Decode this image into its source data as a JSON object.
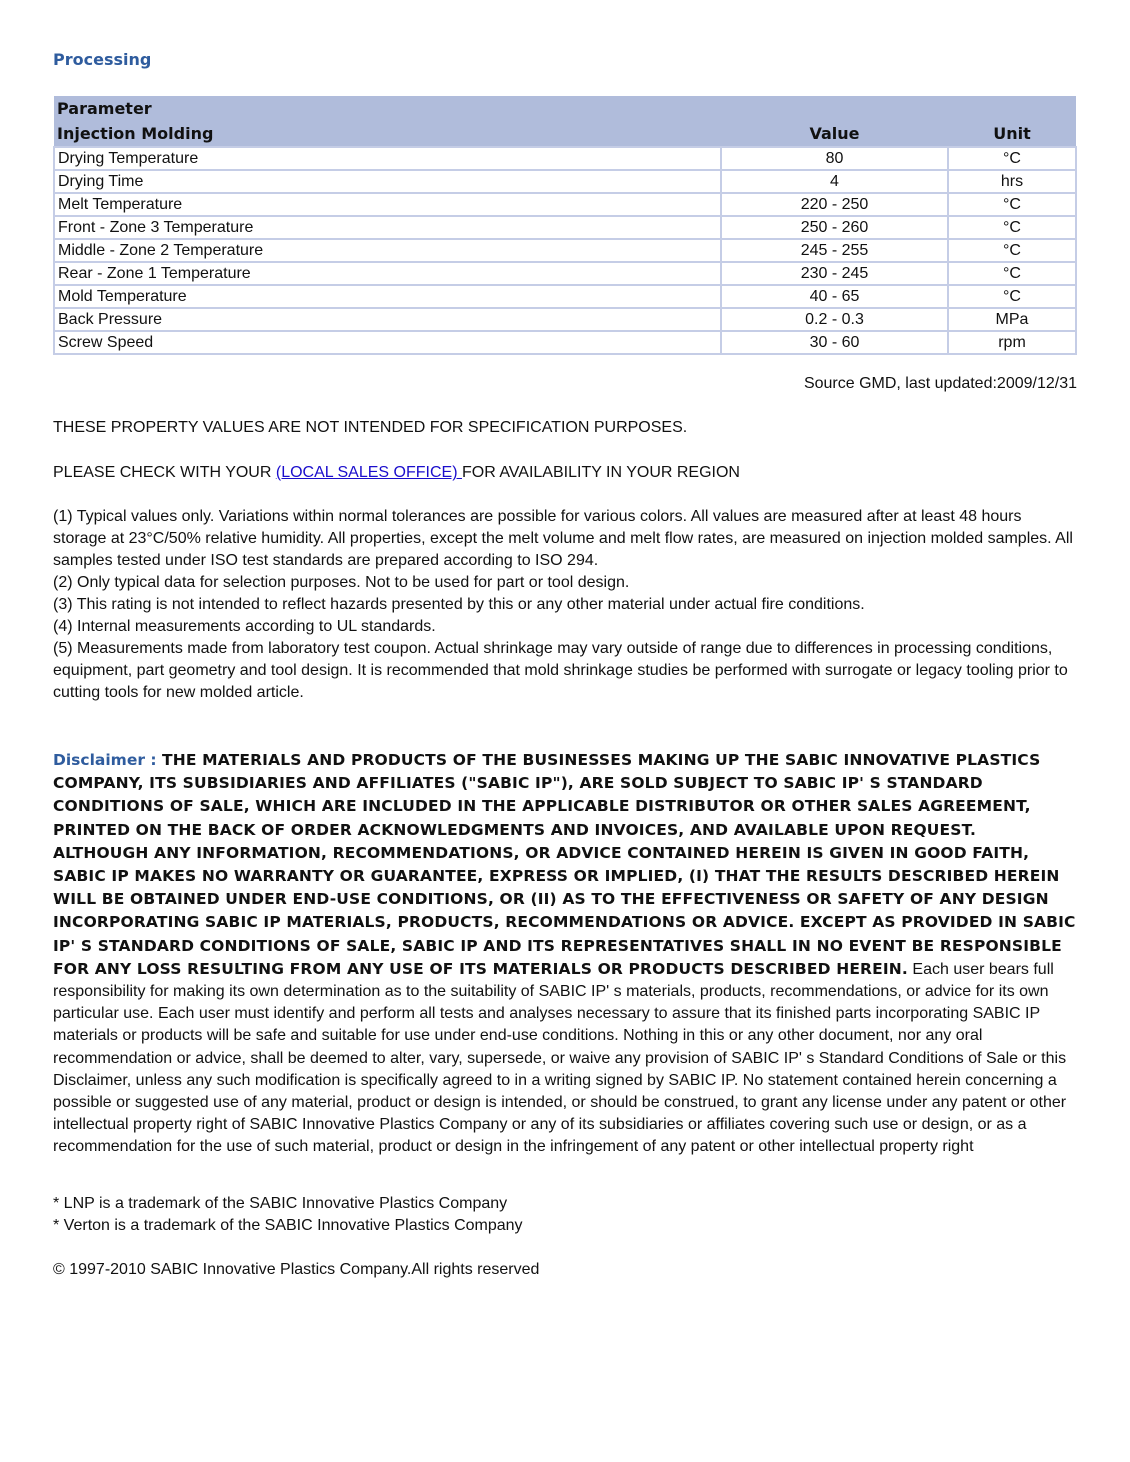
{
  "section_title": "Processing",
  "table": {
    "header_param": "Parameter",
    "header_group": "Injection Molding",
    "header_value": "Value",
    "header_unit": "Unit",
    "rows": [
      {
        "param": "Drying Temperature",
        "value": "80",
        "unit": "°C"
      },
      {
        "param": "Drying Time",
        "value": "4",
        "unit": "hrs"
      },
      {
        "param": "Melt Temperature",
        "value": "220 - 250",
        "unit": "°C"
      },
      {
        "param": "Front - Zone 3 Temperature",
        "value": "250 - 260",
        "unit": "°C"
      },
      {
        "param": "Middle - Zone 2 Temperature",
        "value": "245 - 255",
        "unit": "°C"
      },
      {
        "param": "Rear - Zone 1 Temperature",
        "value": "230 - 245",
        "unit": "°C"
      },
      {
        "param": "Mold Temperature",
        "value": "40 - 65",
        "unit": "°C"
      },
      {
        "param": "Back Pressure",
        "value": "0.2 - 0.3",
        "unit": "MPa"
      },
      {
        "param": "Screw Speed",
        "value": "30 - 60",
        "unit": "rpm"
      }
    ]
  },
  "source": "Source GMD, last updated:2009/12/31",
  "spec_notice": "THESE PROPERTY VALUES ARE NOT INTENDED FOR SPECIFICATION PURPOSES.",
  "check": {
    "before": "PLEASE CHECK WITH YOUR ",
    "link": "(LOCAL SALES OFFICE) ",
    "after": "FOR AVAILABILITY IN YOUR REGION"
  },
  "notes": [
    "(1) Typical values only. Variations within normal tolerances are possible for various colors. All values are measured after at least 48 hours storage at 23°C/50% relative humidity. All properties, except the melt volume and melt flow rates, are measured on injection molded samples. All samples tested under ISO test standards are prepared according to ISO 294.",
    "(2) Only typical data for selection purposes. Not to be used for part or tool design.",
    "(3) This rating is not intended to reflect hazards presented by this or any other material under actual fire conditions.",
    "(4) Internal measurements according to UL standards.",
    "(5) Measurements made from laboratory test coupon. Actual shrinkage may vary outside of range due to differences in processing conditions, equipment, part geometry and tool design. It is recommended that mold shrinkage studies be performed with surrogate or legacy tooling prior to cutting tools for new molded article."
  ],
  "disclaimer": {
    "label": "Disclaimer : ",
    "bold": "THE MATERIALS AND PRODUCTS OF THE BUSINESSES MAKING UP THE SABIC INNOVATIVE PLASTICS COMPANY, ITS SUBSIDIARIES AND AFFILIATES (\"SABIC IP\"), ARE SOLD SUBJECT TO SABIC IP' S STANDARD CONDITIONS OF SALE, WHICH ARE INCLUDED IN THE APPLICABLE DISTRIBUTOR OR OTHER SALES AGREEMENT, PRINTED ON THE BACK OF ORDER ACKNOWLEDGMENTS AND INVOICES, AND AVAILABLE UPON REQUEST. ALTHOUGH ANY INFORMATION, RECOMMENDATIONS, OR ADVICE CONTAINED HEREIN IS GIVEN IN GOOD FAITH, SABIC IP MAKES NO WARRANTY OR GUARANTEE, EXPRESS OR IMPLIED, (I) THAT THE RESULTS DESCRIBED HEREIN WILL BE OBTAINED UNDER END-USE CONDITIONS, OR (II) AS TO THE EFFECTIVENESS OR SAFETY OF ANY DESIGN INCORPORATING SABIC IP MATERIALS, PRODUCTS, RECOMMENDATIONS OR ADVICE. EXCEPT AS PROVIDED IN SABIC IP' S STANDARD CONDITIONS OF SALE, SABIC IP AND ITS REPRESENTATIVES SHALL IN NO EVENT BE RESPONSIBLE FOR ANY LOSS RESULTING FROM ANY USE OF ITS MATERIALS OR PRODUCTS DESCRIBED HEREIN.",
    "normal": " Each user bears full responsibility for making its own determination as to the suitability of SABIC IP' s materials, products, recommendations, or advice for its own particular use. Each user must identify and perform all tests and analyses necessary to assure that its finished parts incorporating SABIC IP materials or products will be safe and suitable for use under end-use conditions. Nothing in this or any other document, nor any oral recommendation or advice, shall be deemed to alter, vary, supersede, or waive any provision of SABIC IP' s Standard Conditions of Sale or this Disclaimer, unless any such modification is specifically agreed to in a writing signed by SABIC IP. No statement contained herein concerning a possible or suggested use of any material, product or design is intended, or should be construed, to grant any license under any patent or other intellectual property right of SABIC Innovative Plastics Company or any of its subsidiaries or affiliates covering such use or design, or as a recommendation for the use of such material, product or design in the infringement of any patent or other intellectual property right"
  },
  "trademarks": [
    "* LNP is a trademark of the SABIC Innovative Plastics Company",
    "* Verton is a trademark of the SABIC Innovative Plastics Company"
  ],
  "copyright": "© 1997-2010 SABIC Innovative Plastics Company.All rights reserved"
}
